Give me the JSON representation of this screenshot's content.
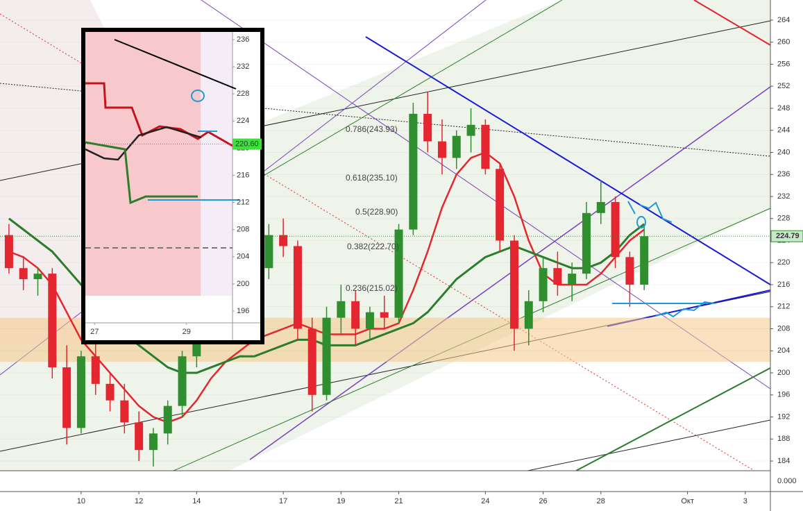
{
  "chart_data": {
    "type": "candlestick",
    "x": [
      7.5,
      8,
      8.5,
      9,
      9.5,
      10,
      10.5,
      11,
      11.5,
      12,
      12.5,
      13,
      13.5,
      14,
      14.5,
      15,
      15.5,
      16,
      16.5,
      17,
      17.5,
      18,
      18.5,
      19,
      19.5,
      20,
      20.5,
      21,
      21.5,
      22,
      22.5,
      23,
      23.5,
      24,
      24.5,
      25,
      25.5,
      26,
      26.5,
      27,
      27.5,
      28,
      28.5,
      29,
      29.5
    ],
    "open": [
      225,
      219,
      217,
      218,
      201,
      190,
      203,
      198,
      195,
      191,
      186,
      189,
      194,
      203,
      208,
      211,
      212,
      215,
      219,
      225,
      223,
      208,
      196,
      210,
      213,
      208,
      211,
      210,
      226,
      247,
      242,
      239,
      243,
      245,
      237,
      224,
      208,
      213,
      219,
      216,
      218,
      229,
      231,
      221,
      216
    ],
    "high": [
      227,
      221,
      219,
      219,
      205,
      204,
      206,
      200,
      198,
      193,
      190,
      195,
      204,
      210,
      213,
      214,
      216,
      220,
      227,
      228,
      224,
      210,
      212,
      216,
      215,
      212,
      214,
      227,
      249,
      251,
      246,
      244,
      248,
      246,
      238,
      225,
      215,
      221,
      222,
      220,
      231,
      235,
      232,
      222,
      227
    ],
    "low": [
      218,
      215,
      214,
      199,
      187,
      189,
      196,
      193,
      189,
      184,
      183,
      187,
      192,
      201,
      206,
      208,
      210,
      213,
      217,
      221,
      206,
      193,
      195,
      207,
      205,
      206,
      208,
      209,
      225,
      240,
      236,
      237,
      240,
      236,
      222,
      204,
      205,
      211,
      214,
      213,
      217,
      227,
      219,
      212,
      215
    ],
    "close": [
      219,
      217,
      218,
      201,
      190,
      203,
      198,
      195,
      191,
      186,
      189,
      194,
      203,
      208,
      211,
      212,
      215,
      219,
      225,
      223,
      208,
      196,
      210,
      213,
      208,
      211,
      210,
      226,
      247,
      242,
      239,
      243,
      245,
      237,
      224,
      208,
      213,
      219,
      216,
      218,
      229,
      231,
      221,
      216,
      224.79
    ],
    "up_color": "#2f8f2f",
    "down_color": "#e3262f",
    "lines": [
      {
        "color": "#e3262f",
        "values": [
          222,
          221,
          219,
          216,
          211,
          206,
          203,
          200,
          197,
          194,
          192,
          191,
          192,
          195,
          199,
          202,
          204,
          206,
          207,
          208,
          209,
          208,
          207,
          207,
          207,
          208,
          208,
          209,
          215,
          222,
          230,
          236,
          239,
          240,
          238,
          232,
          224,
          218,
          216,
          216,
          216,
          218,
          221,
          224,
          226
        ]
      },
      {
        "color": "#2b7d2b",
        "values": [
          228,
          226,
          224,
          222,
          219,
          216,
          213,
          210,
          207,
          205,
          203,
          201,
          200,
          200,
          201,
          202,
          203,
          203,
          204,
          205,
          206,
          206,
          205,
          205,
          205,
          206,
          207,
          208,
          209,
          211,
          214,
          217,
          219,
          221,
          222,
          223,
          222,
          221,
          220,
          219,
          219,
          220,
          222,
          225,
          227
        ]
      }
    ],
    "zone": [
      202,
      210
    ],
    "last_price": 224.79,
    "ylim": [
      182.24,
      267.65
    ],
    "yticks": [
      184,
      188,
      192,
      196,
      200,
      204,
      208,
      212,
      216,
      220,
      224,
      228,
      232,
      236,
      240,
      244,
      248,
      252,
      256,
      260,
      264
    ],
    "xlim": [
      7.19,
      33.87
    ],
    "xticks": [
      10,
      12,
      14,
      17,
      19,
      21,
      24,
      26,
      28,
      {
        "value": 31,
        "label": "Окт"
      },
      {
        "value": 33,
        "label": "3"
      }
    ],
    "indicator_label": "0.000",
    "fib_labels": [
      "0.786(243.93)",
      "0.618(235.10)",
      "0.5(228.90)",
      "0.382(222.70)",
      "0.236(215.02)"
    ],
    "inset": {
      "ylim": [
        194.26,
        237.13
      ],
      "yticks": [
        196,
        200,
        204,
        208,
        212,
        216,
        220,
        224,
        228,
        232,
        236
      ],
      "xlim": [
        26.8,
        30.0
      ],
      "xticks": [
        27,
        29
      ],
      "price": {
        "value": 220.6,
        "label": "220.60"
      }
    }
  }
}
